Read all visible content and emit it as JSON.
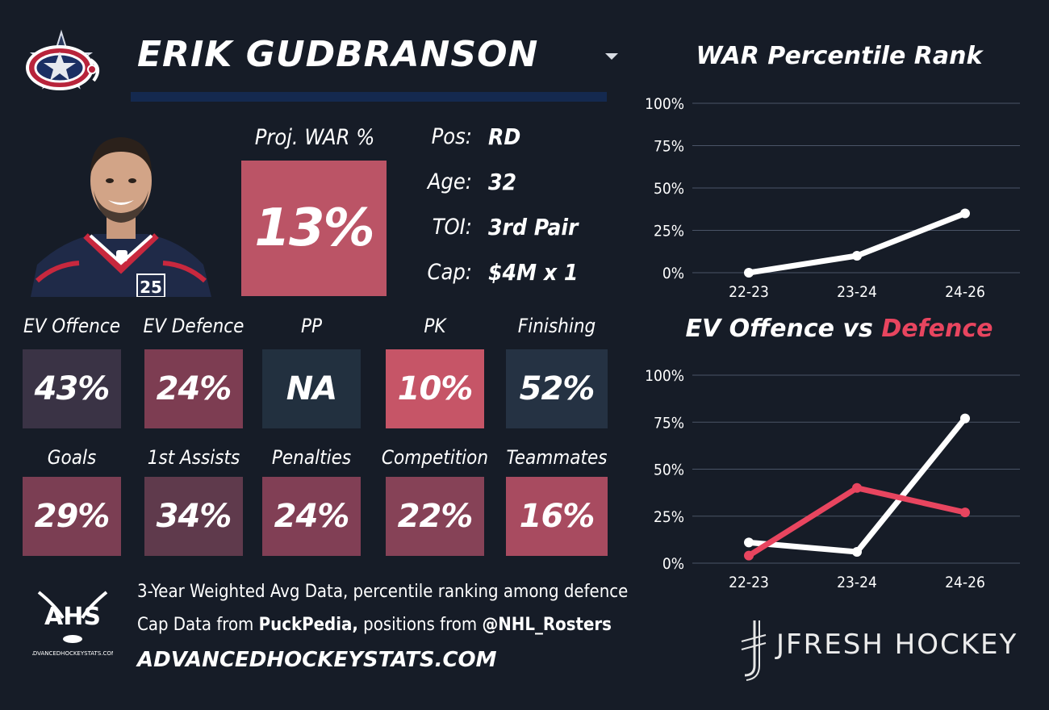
{
  "header": {
    "player_name": "ERIK GUDBRANSON"
  },
  "projection": {
    "label": "Proj. WAR %",
    "value": "13%",
    "color": "#bb5466"
  },
  "bio": [
    {
      "label": "Pos:",
      "value": "RD"
    },
    {
      "label": "Age:",
      "value": "32"
    },
    {
      "label": "TOI:",
      "value": "3rd Pair"
    },
    {
      "label": "Cap:",
      "value": "$4M x 1"
    }
  ],
  "tiles_row1": [
    {
      "label": "EV Offence",
      "value": "43%",
      "color": "#3a3345"
    },
    {
      "label": "EV Defence",
      "value": "24%",
      "color": "#7d3d52"
    },
    {
      "label": "PP",
      "value": "NA",
      "color": "#22303f"
    },
    {
      "label": "PK",
      "value": "10%",
      "color": "#c65567"
    },
    {
      "label": "Finishing",
      "value": "52%",
      "color": "#253243"
    }
  ],
  "tiles_row2": [
    {
      "label": "Goals",
      "value": "29%",
      "color": "#7b3e53"
    },
    {
      "label": "1st Assists",
      "value": "34%",
      "color": "#5f3a4c"
    },
    {
      "label": "Penalties",
      "value": "24%",
      "color": "#813f55"
    },
    {
      "label": "Competition",
      "value": "22%",
      "color": "#864257"
    },
    {
      "label": "Teammates",
      "value": "16%",
      "color": "#a84b60"
    }
  ],
  "footer": {
    "ahs_logo_text": "AHS",
    "ahs_logo_sub": "ADVANCEDHOCKEYSTATS.COM",
    "line1": "3-Year Weighted Avg Data, percentile ranking among defence",
    "line2_prefix": "Cap Data from ",
    "line2_bold1": "PuckPedia,",
    "line2_middle": " positions from ",
    "line2_bold2": "@NHL_Rosters",
    "site": "ADVANCEDHOCKEYSTATS.COM",
    "brand": "JFRESH HOCKEY"
  },
  "chart_data": [
    {
      "type": "line",
      "title": "WAR Percentile Rank",
      "categories": [
        "22-23",
        "23-24",
        "24-26"
      ],
      "yticks": [
        "0%",
        "25%",
        "50%",
        "75%",
        "100%"
      ],
      "ylim": [
        0,
        100
      ],
      "grid": true,
      "series": [
        {
          "values": [
            0,
            10,
            35
          ],
          "color": "#ffffff"
        }
      ]
    },
    {
      "type": "line",
      "title_part1": "EV Offence vs ",
      "title_part2": "Defence",
      "title_part2_color": "#e8455f",
      "categories": [
        "22-23",
        "23-24",
        "24-26"
      ],
      "yticks": [
        "0%",
        "25%",
        "50%",
        "75%",
        "100%"
      ],
      "ylim": [
        0,
        100
      ],
      "grid": true,
      "series": [
        {
          "values": [
            11,
            6,
            77
          ],
          "color": "#ffffff"
        },
        {
          "values": [
            4,
            40,
            27
          ],
          "color": "#e8455f"
        }
      ]
    }
  ]
}
